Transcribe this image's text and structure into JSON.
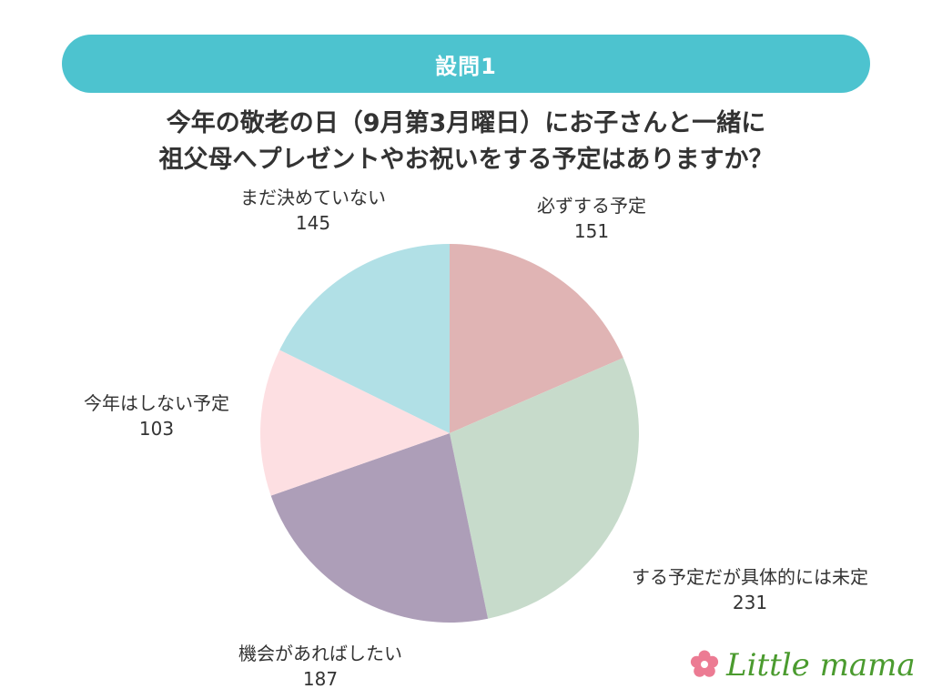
{
  "header": {
    "label": "設問1"
  },
  "question": {
    "line1": "今年の敬老の日（9月第3月曜日）にお子さんと一緒に",
    "line2": "祖父母へプレゼントやお祝いをする予定はありますか？"
  },
  "chart_data": {
    "type": "pie",
    "start_angle_deg": 0,
    "direction": "clockwise",
    "slices": [
      {
        "label": "必ずする予定",
        "value": 151,
        "color": "#e0b4b4"
      },
      {
        "label": "する予定だが具体的には未定",
        "value": 231,
        "color": "#c7dbcb"
      },
      {
        "label": "機会があればしたい",
        "value": 187,
        "color": "#ad9eb8"
      },
      {
        "label": "今年はしない予定",
        "value": 103,
        "color": "#fddfe2"
      },
      {
        "label": "まだ決めていない",
        "value": 145,
        "color": "#b1e0e6"
      }
    ]
  },
  "logo": {
    "text": "Little mama",
    "flower_color": "#ec7b93",
    "text_color": "#4b9b2f"
  }
}
